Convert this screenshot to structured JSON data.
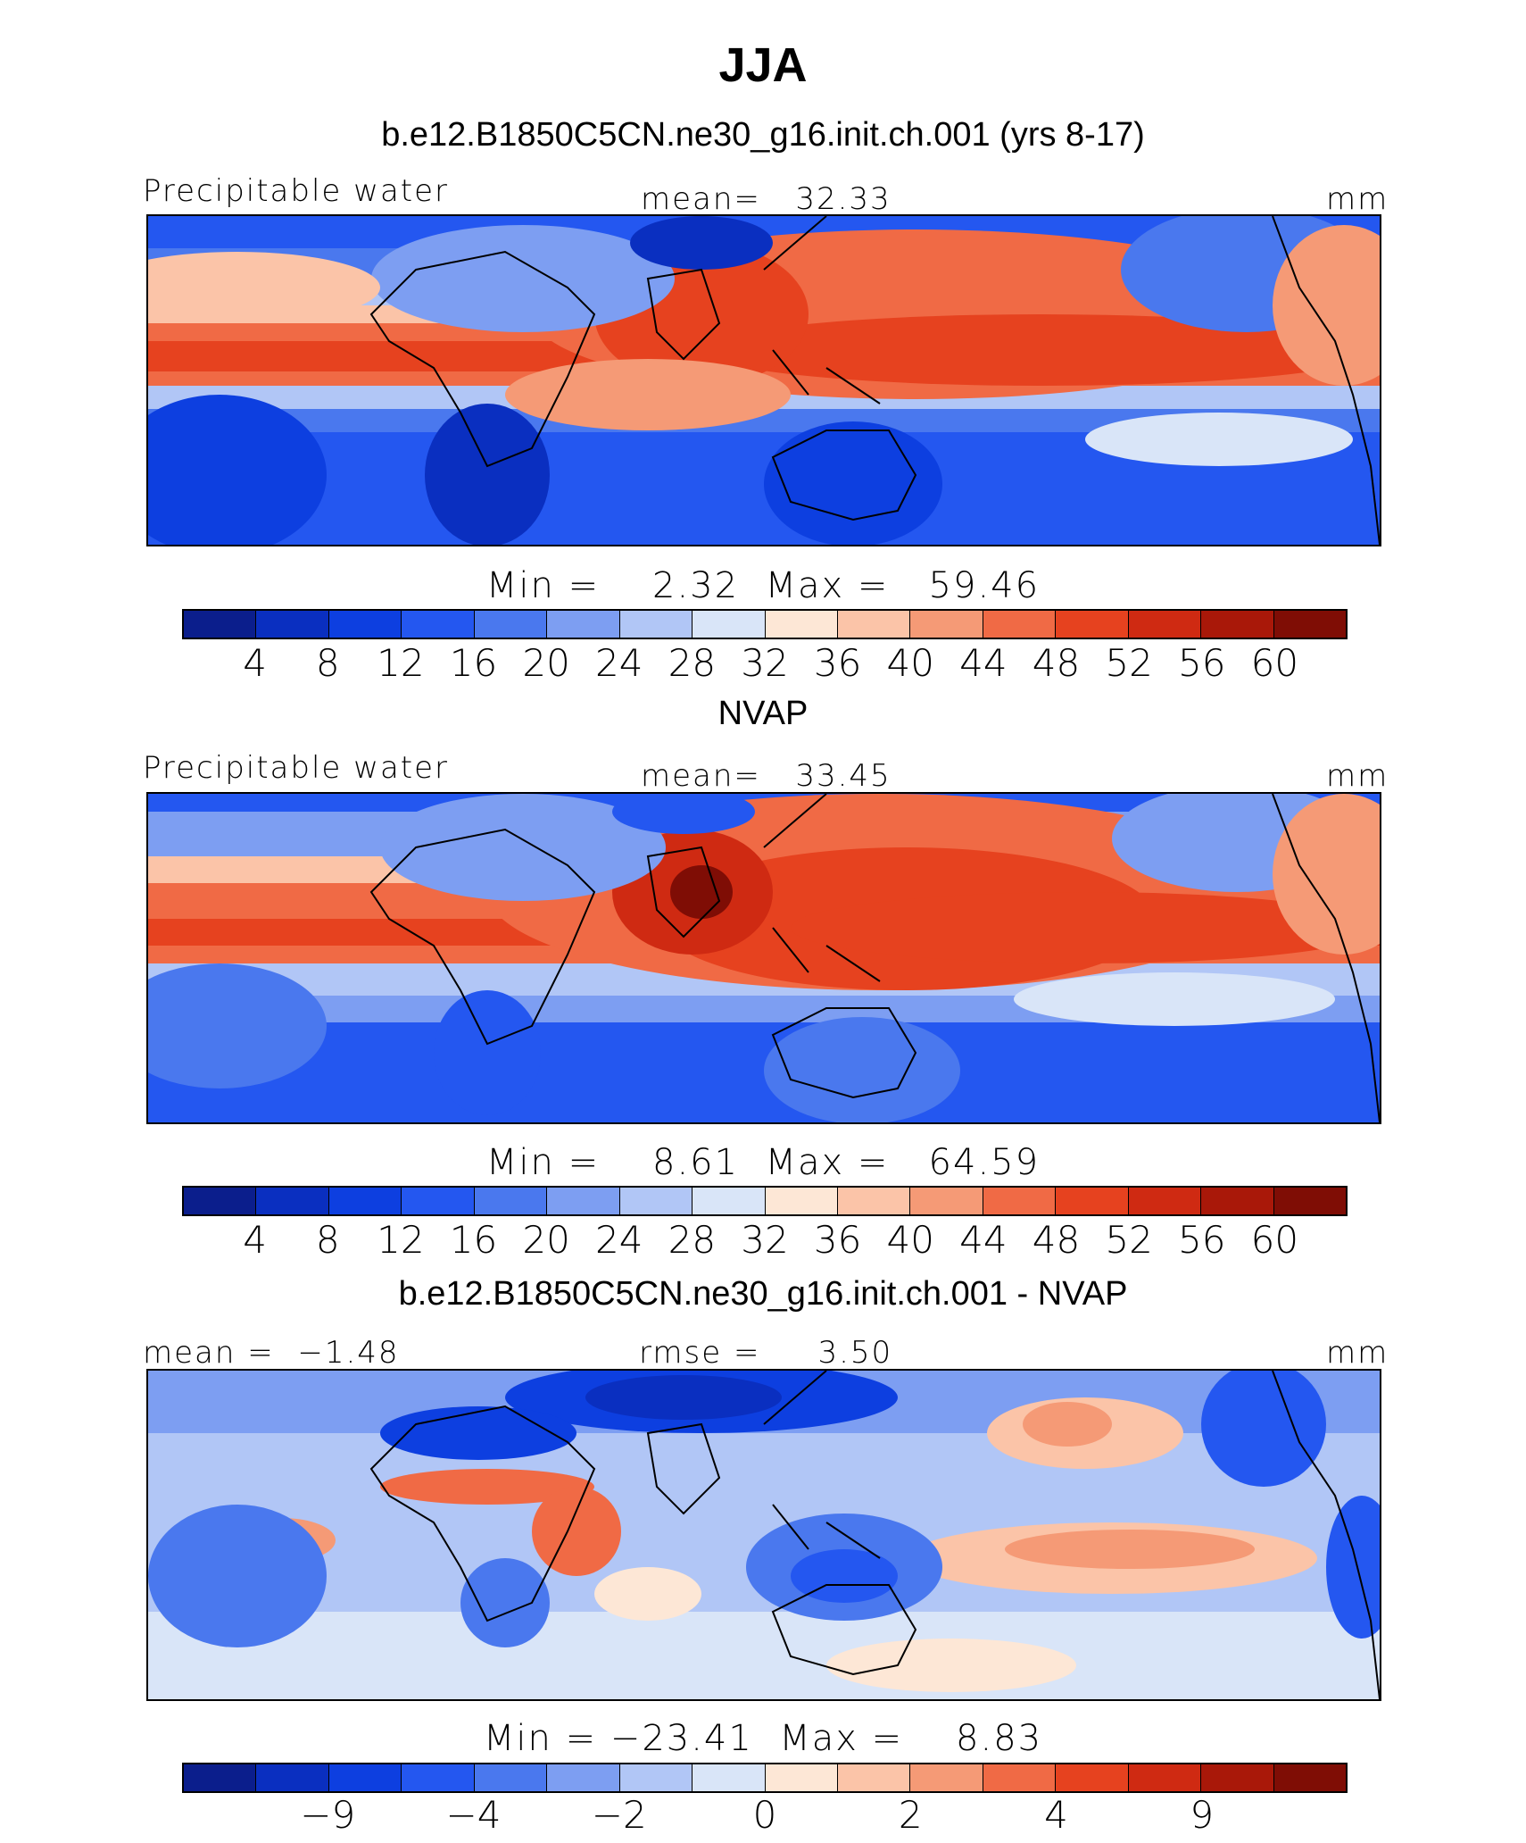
{
  "figure": {
    "title": "JJA",
    "units": "mm",
    "colors": [
      "#0b1e8c",
      "#0a2fc0",
      "#0d3fe0",
      "#2457f0",
      "#4a78ee",
      "#7d9ef2",
      "#b1c6f6",
      "#d9e5f8",
      "#fde7d6",
      "#fbc4a8",
      "#f59a76",
      "#f06a45",
      "#e6421f",
      "#cf2a12",
      "#a91809",
      "#7f0d05"
    ]
  },
  "chart_data": [
    {
      "type": "heatmap",
      "title": "b.e12.B1850C5CN.ne30_g16.init.ch.001 (yrs 8-17)",
      "variable": "Precipitable water",
      "stat_label": "mean=   32.33",
      "mean": 32.33,
      "units": "mm",
      "minmax_label": "Min =    2.32  Max =   59.46",
      "min": 2.32,
      "max": 59.46,
      "colorbar_ticks": [
        "4",
        "8",
        "12",
        "16",
        "20",
        "24",
        "28",
        "32",
        "36",
        "40",
        "44",
        "48",
        "52",
        "56",
        "60"
      ],
      "colorbar_levels": [
        4,
        8,
        12,
        16,
        20,
        24,
        28,
        32,
        36,
        40,
        44,
        48,
        52,
        56,
        60
      ]
    },
    {
      "type": "heatmap",
      "title": "NVAP",
      "variable": "Precipitable water",
      "stat_label": "mean=   33.45",
      "mean": 33.45,
      "units": "mm",
      "minmax_label": "Min =    8.61  Max =   64.59",
      "min": 8.61,
      "max": 64.59,
      "colorbar_ticks": [
        "4",
        "8",
        "12",
        "16",
        "20",
        "24",
        "28",
        "32",
        "36",
        "40",
        "44",
        "48",
        "52",
        "56",
        "60"
      ],
      "colorbar_levels": [
        4,
        8,
        12,
        16,
        20,
        24,
        28,
        32,
        36,
        40,
        44,
        48,
        52,
        56,
        60
      ]
    },
    {
      "type": "heatmap",
      "title": "b.e12.B1850C5CN.ne30_g16.init.ch.001 - NVAP",
      "stat_left_label": "mean =  −1.48",
      "mean": -1.48,
      "stat_label": "rmse =     3.50",
      "rmse": 3.5,
      "units": "mm",
      "minmax_label": "Min = −23.41  Max =    8.83",
      "min": -23.41,
      "max": 8.83,
      "colorbar_ticks": [
        "−9",
        "−4",
        "−2",
        "0",
        "2",
        "4",
        "9"
      ],
      "colorbar_tick_positions": [
        2,
        4,
        6,
        8,
        10,
        12,
        14
      ]
    }
  ]
}
